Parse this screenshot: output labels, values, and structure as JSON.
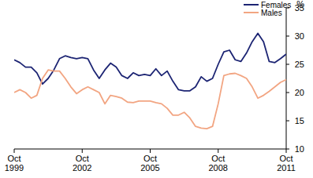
{
  "chart_data": {
    "type": "line",
    "y_label": "%",
    "categories": [
      "Oct 1999",
      null,
      null,
      null,
      null,
      null,
      null,
      null,
      null,
      null,
      null,
      null,
      "Oct 2002",
      null,
      null,
      null,
      null,
      null,
      null,
      null,
      null,
      null,
      null,
      null,
      "Oct 2005",
      null,
      null,
      null,
      null,
      null,
      null,
      null,
      null,
      null,
      null,
      null,
      "Oct 2008",
      null,
      null,
      null,
      null,
      null,
      null,
      null,
      null,
      null,
      null,
      null,
      "Oct 2011"
    ],
    "series": [
      {
        "name": "Females",
        "color": "#1c2473",
        "values": [
          25.8,
          25.3,
          24.5,
          24.5,
          23.5,
          21.5,
          22.5,
          24.0,
          26.0,
          26.5,
          26.2,
          26.0,
          26.2,
          26.0,
          24.0,
          22.5,
          24.0,
          25.2,
          24.5,
          23.0,
          22.5,
          23.5,
          23.0,
          23.2,
          23.0,
          24.2,
          23.0,
          23.8,
          22.0,
          20.5,
          20.3,
          20.3,
          21.0,
          22.8,
          22.0,
          22.5,
          25.0,
          27.2,
          27.5,
          25.8,
          25.5,
          27.0,
          29.0,
          30.5,
          29.0,
          25.5,
          25.3,
          26.0,
          26.8
        ]
      },
      {
        "name": "Males",
        "color": "#f2a582",
        "values": [
          20.0,
          20.5,
          20.0,
          19.0,
          19.5,
          22.5,
          24.0,
          23.8,
          23.8,
          22.5,
          21.0,
          19.8,
          20.5,
          21.0,
          20.5,
          20.0,
          18.0,
          19.5,
          19.3,
          19.0,
          18.3,
          18.2,
          18.5,
          18.5,
          18.5,
          18.2,
          18.0,
          17.2,
          16.0,
          16.0,
          16.5,
          15.5,
          14.0,
          13.7,
          13.6,
          14.0,
          18.0,
          23.0,
          23.3,
          23.4,
          23.0,
          22.5,
          21.0,
          19.0,
          19.5,
          20.2,
          21.0,
          21.8,
          22.3
        ]
      }
    ],
    "ylim": [
      10,
      35
    ],
    "yticks": [
      10,
      15,
      20,
      25,
      30,
      35
    ],
    "legend": "top-right"
  }
}
